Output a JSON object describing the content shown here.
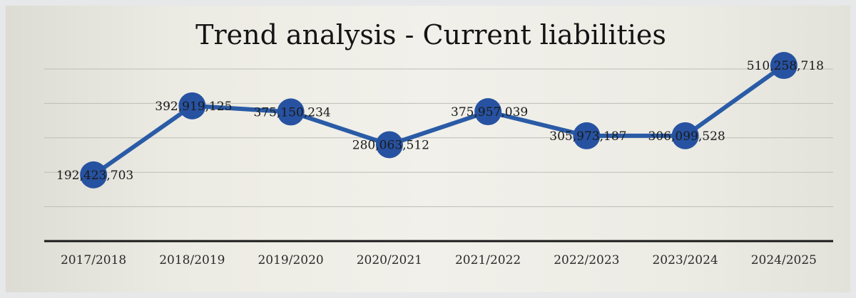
{
  "chart_data": {
    "type": "line",
    "title": "Trend analysis - Current liabilities",
    "categories": [
      "2017/2018",
      "2018/2019",
      "2019/2020",
      "2020/2021",
      "2021/2022",
      "2022/2023",
      "2023/2024",
      "2024/2025"
    ],
    "values": [
      192423703,
      392919125,
      375150234,
      280063512,
      375957039,
      305973187,
      306099528,
      510258718
    ],
    "data_labels": [
      "192,423,703",
      "392,919,125",
      "375,150,234",
      "280,063,512",
      "375,957,039",
      "305,973,187",
      "306,099,528",
      "510,258,718"
    ],
    "ylim": [
      0,
      600000000
    ],
    "grid": true,
    "legend": "none",
    "colors": {
      "line": "#2a5ba6",
      "marker": "#2752a1",
      "grid": "#bdbdb7",
      "axis": "#1a1a1a"
    }
  }
}
